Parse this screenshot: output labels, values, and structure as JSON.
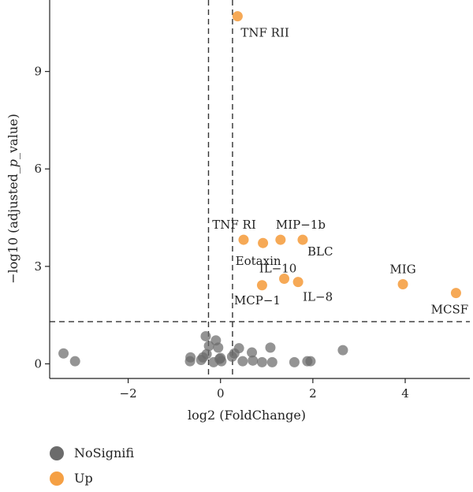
{
  "chart_data": {
    "type": "scatter",
    "title": "",
    "xlabel": "log2 (FoldChange)",
    "ylabel": "−log10 (adjusted_p_value)",
    "ylabel_parts": [
      "−log10 (adjusted_",
      "p",
      "_value)"
    ],
    "xlim": [
      -3.7,
      5.4
    ],
    "ylim": [
      -0.45,
      11.2
    ],
    "x_ticks": [
      -2,
      0,
      2,
      4
    ],
    "x_tick_labels": [
      "−2",
      "0",
      "2",
      "4"
    ],
    "y_ticks": [
      0,
      3,
      6,
      9
    ],
    "y_tick_labels": [
      "0",
      "3",
      "6",
      "9"
    ],
    "thresholds": {
      "x": [
        -0.26,
        0.26
      ],
      "y": 1.3
    },
    "grid": false,
    "legend_position": "bottom-left",
    "colors": {
      "NoSignifi": "#6b6b6b",
      "Up": "#f5a044",
      "threshold_line": "#333333",
      "axis": "#222222"
    },
    "series": [
      {
        "name": "NoSignifi",
        "points": [
          {
            "x": -3.4,
            "y": 0.32
          },
          {
            "x": -3.15,
            "y": 0.08
          },
          {
            "x": -0.66,
            "y": 0.08
          },
          {
            "x": -0.65,
            "y": 0.2
          },
          {
            "x": -0.42,
            "y": 0.12
          },
          {
            "x": -0.38,
            "y": 0.2
          },
          {
            "x": -0.32,
            "y": 0.85
          },
          {
            "x": -0.3,
            "y": 0.3
          },
          {
            "x": -0.25,
            "y": 0.55
          },
          {
            "x": -0.15,
            "y": 0.05
          },
          {
            "x": -0.1,
            "y": 0.72
          },
          {
            "x": -0.05,
            "y": 0.5
          },
          {
            "x": -0.02,
            "y": 0.15
          },
          {
            "x": 0.0,
            "y": 0.18
          },
          {
            "x": 0.02,
            "y": 0.08
          },
          {
            "x": 0.25,
            "y": 0.22
          },
          {
            "x": 0.3,
            "y": 0.32
          },
          {
            "x": 0.4,
            "y": 0.48
          },
          {
            "x": 0.48,
            "y": 0.08
          },
          {
            "x": 0.68,
            "y": 0.35
          },
          {
            "x": 0.7,
            "y": 0.1
          },
          {
            "x": 0.9,
            "y": 0.05
          },
          {
            "x": 1.08,
            "y": 0.5
          },
          {
            "x": 1.12,
            "y": 0.05
          },
          {
            "x": 1.6,
            "y": 0.05
          },
          {
            "x": 1.88,
            "y": 0.08
          },
          {
            "x": 1.95,
            "y": 0.08
          },
          {
            "x": 2.65,
            "y": 0.42
          }
        ]
      },
      {
        "name": "Up",
        "points": [
          {
            "x": 0.37,
            "y": 10.7,
            "label": "TNF RII"
          },
          {
            "x": 0.5,
            "y": 3.82,
            "label": "TNF RI"
          },
          {
            "x": 0.92,
            "y": 3.72,
            "label": "Eotaxin"
          },
          {
            "x": 1.3,
            "y": 3.82,
            "label": "MIP−1b"
          },
          {
            "x": 1.78,
            "y": 3.82,
            "label": "BLC"
          },
          {
            "x": 1.38,
            "y": 2.62,
            "label": "IL−10"
          },
          {
            "x": 1.68,
            "y": 2.52,
            "label": "IL−8"
          },
          {
            "x": 0.9,
            "y": 2.42,
            "label": "MCP−1"
          },
          {
            "x": 3.95,
            "y": 2.45,
            "label": "MIG"
          },
          {
            "x": 5.1,
            "y": 2.18,
            "label": "MCSF"
          }
        ]
      }
    ]
  },
  "legend": {
    "items": [
      {
        "label": "NoSignifi",
        "color": "#6b6b6b"
      },
      {
        "label": "Up",
        "color": "#f5a044"
      }
    ]
  }
}
